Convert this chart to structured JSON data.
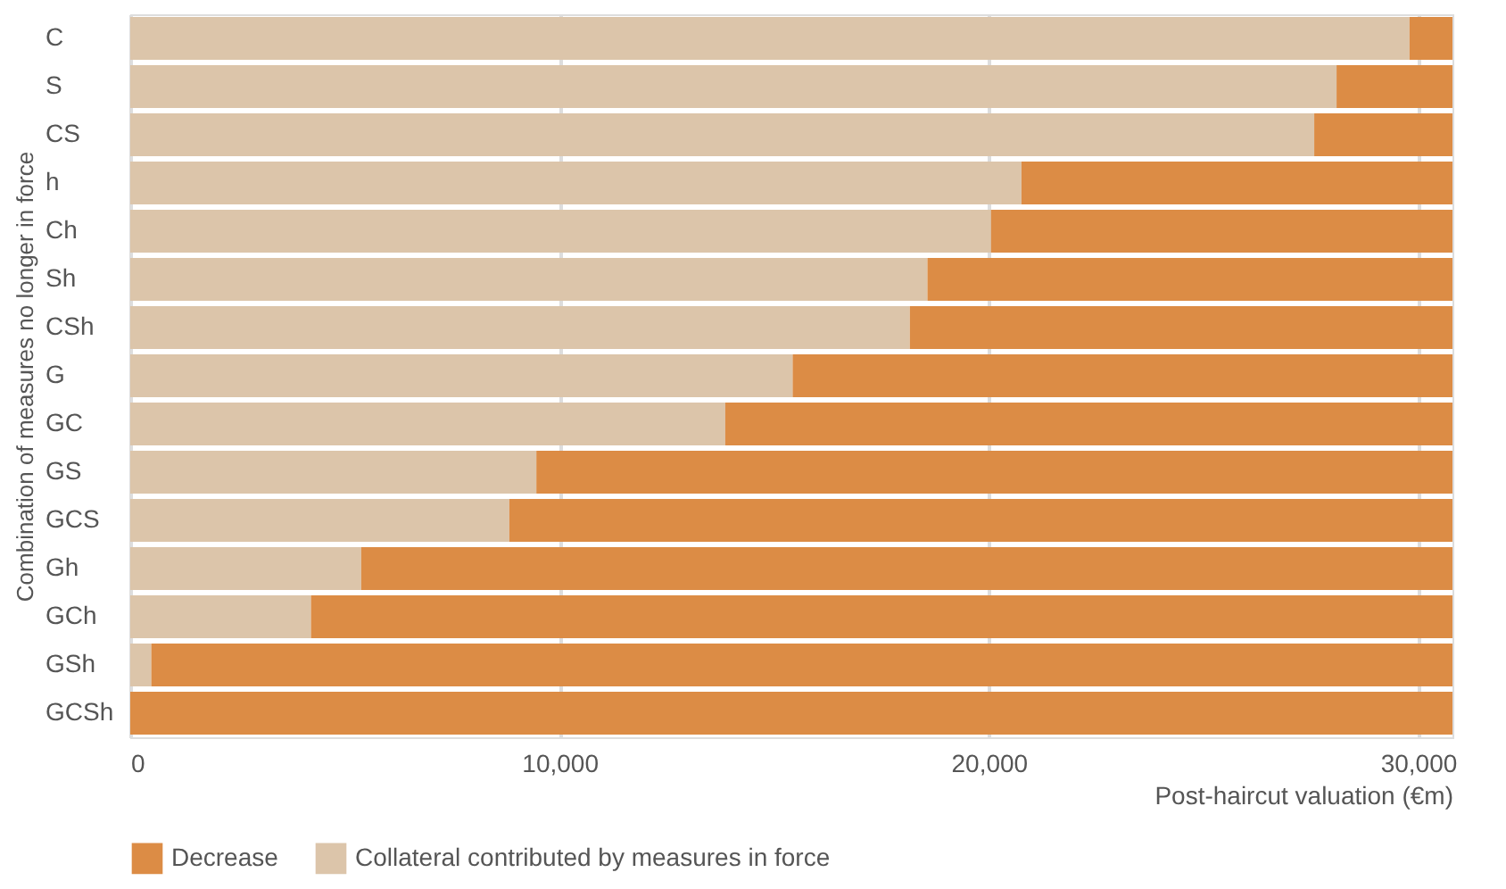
{
  "chart_data": {
    "type": "bar",
    "orientation": "horizontal",
    "stacked": true,
    "categories": [
      "C",
      "S",
      "CS",
      "h",
      "Ch",
      "Sh",
      "CSh",
      "G",
      "GC",
      "GS",
      "GCS",
      "Gh",
      "GCh",
      "GSh",
      "GCSh"
    ],
    "series": [
      {
        "name": "Collateral contributed by measures in force",
        "color": "#dcc5aa",
        "values": [
          29800,
          28100,
          27580,
          20760,
          20050,
          18570,
          18160,
          15430,
          13860,
          9460,
          8830,
          5380,
          4210,
          490,
          0
        ]
      },
      {
        "name": "Decrease",
        "color": "#dc8c45",
        "values": [
          1000,
          2700,
          3220,
          10040,
          10750,
          12230,
          12640,
          15370,
          16940,
          21340,
          21970,
          25420,
          26590,
          30310,
          30800
        ]
      }
    ],
    "xlabel": "Post-haircut valuation (€m)",
    "ylabel": "Combination of measures no longer in force",
    "xlim": [
      0,
      30800
    ],
    "xticks": [
      0,
      {
        "value": 10000,
        "label": "10,000"
      },
      {
        "value": 20000,
        "label": "20,000"
      },
      {
        "value": 30000,
        "label": "30,000"
      }
    ],
    "grid": "x",
    "legend": "bottom"
  }
}
